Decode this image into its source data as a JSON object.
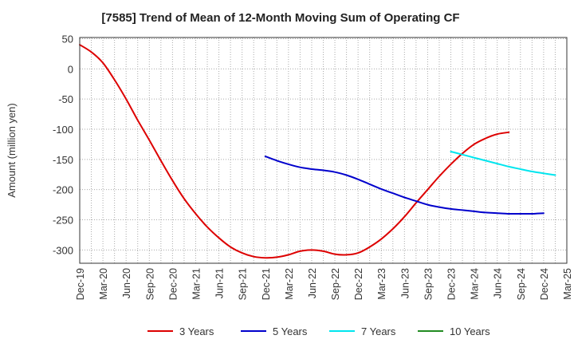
{
  "chart_data": {
    "type": "line",
    "title": "[7585]  Trend of Mean of 12-Month Moving Sum of Operating CF",
    "xlabel": "",
    "ylabel": "Amount (million yen)",
    "ylim": [
      -322,
      52
    ],
    "yticks": [
      50,
      0,
      -50,
      -100,
      -150,
      -200,
      -250,
      -300
    ],
    "x_ticks": [
      "Dec-19",
      "Mar-20",
      "Jun-20",
      "Sep-20",
      "Dec-20",
      "Mar-21",
      "Jun-21",
      "Sep-21",
      "Dec-21",
      "Mar-22",
      "Jun-22",
      "Sep-22",
      "Dec-22",
      "Mar-23",
      "Jun-23",
      "Sep-23",
      "Dec-23",
      "Mar-24",
      "Jun-24",
      "Sep-24",
      "Dec-24",
      "Mar-25"
    ],
    "grid": true,
    "legend_position": "bottom",
    "series": [
      {
        "name": "3 Years",
        "color": "#dd0000",
        "points": [
          [
            0,
            40
          ],
          [
            0.5,
            28
          ],
          [
            1,
            10
          ],
          [
            1.5,
            -18
          ],
          [
            2,
            -50
          ],
          [
            2.5,
            -85
          ],
          [
            3,
            -118
          ],
          [
            3.5,
            -152
          ],
          [
            4,
            -185
          ],
          [
            4.5,
            -215
          ],
          [
            5,
            -240
          ],
          [
            5.5,
            -262
          ],
          [
            6,
            -280
          ],
          [
            6.5,
            -295
          ],
          [
            7,
            -305
          ],
          [
            7.5,
            -311
          ],
          [
            8,
            -313
          ],
          [
            8.5,
            -312
          ],
          [
            9,
            -308
          ],
          [
            9.5,
            -302
          ],
          [
            10,
            -300
          ],
          [
            10.5,
            -302
          ],
          [
            11,
            -307
          ],
          [
            11.5,
            -308
          ],
          [
            12,
            -305
          ],
          [
            12.5,
            -295
          ],
          [
            13,
            -282
          ],
          [
            13.5,
            -265
          ],
          [
            14,
            -245
          ],
          [
            14.5,
            -222
          ],
          [
            15,
            -200
          ],
          [
            15.5,
            -178
          ],
          [
            16,
            -158
          ],
          [
            16.5,
            -140
          ],
          [
            17,
            -125
          ],
          [
            17.5,
            -115
          ],
          [
            18,
            -108
          ],
          [
            18.5,
            -105
          ]
        ]
      },
      {
        "name": "5 Years",
        "color": "#0000cc",
        "points": [
          [
            8,
            -145
          ],
          [
            8.5,
            -152
          ],
          [
            9,
            -158
          ],
          [
            9.5,
            -163
          ],
          [
            10,
            -166
          ],
          [
            10.5,
            -168
          ],
          [
            11,
            -171
          ],
          [
            11.5,
            -176
          ],
          [
            12,
            -183
          ],
          [
            12.5,
            -191
          ],
          [
            13,
            -199
          ],
          [
            13.5,
            -206
          ],
          [
            14,
            -213
          ],
          [
            14.5,
            -219
          ],
          [
            15,
            -225
          ],
          [
            15.5,
            -229
          ],
          [
            16,
            -232
          ],
          [
            16.5,
            -234
          ],
          [
            17,
            -236
          ],
          [
            17.5,
            -238
          ],
          [
            18,
            -239
          ],
          [
            18.5,
            -240
          ],
          [
            19,
            -240
          ],
          [
            19.5,
            -240
          ],
          [
            20,
            -239
          ]
        ]
      },
      {
        "name": "7 Years",
        "color": "#00e5ee",
        "points": [
          [
            16,
            -137
          ],
          [
            16.5,
            -142
          ],
          [
            17,
            -147
          ],
          [
            17.5,
            -152
          ],
          [
            18,
            -157
          ],
          [
            18.5,
            -162
          ],
          [
            19,
            -166
          ],
          [
            19.5,
            -170
          ],
          [
            20,
            -173
          ],
          [
            20.5,
            -176
          ]
        ]
      },
      {
        "name": "10 Years",
        "color": "#228b22",
        "points": []
      }
    ]
  }
}
